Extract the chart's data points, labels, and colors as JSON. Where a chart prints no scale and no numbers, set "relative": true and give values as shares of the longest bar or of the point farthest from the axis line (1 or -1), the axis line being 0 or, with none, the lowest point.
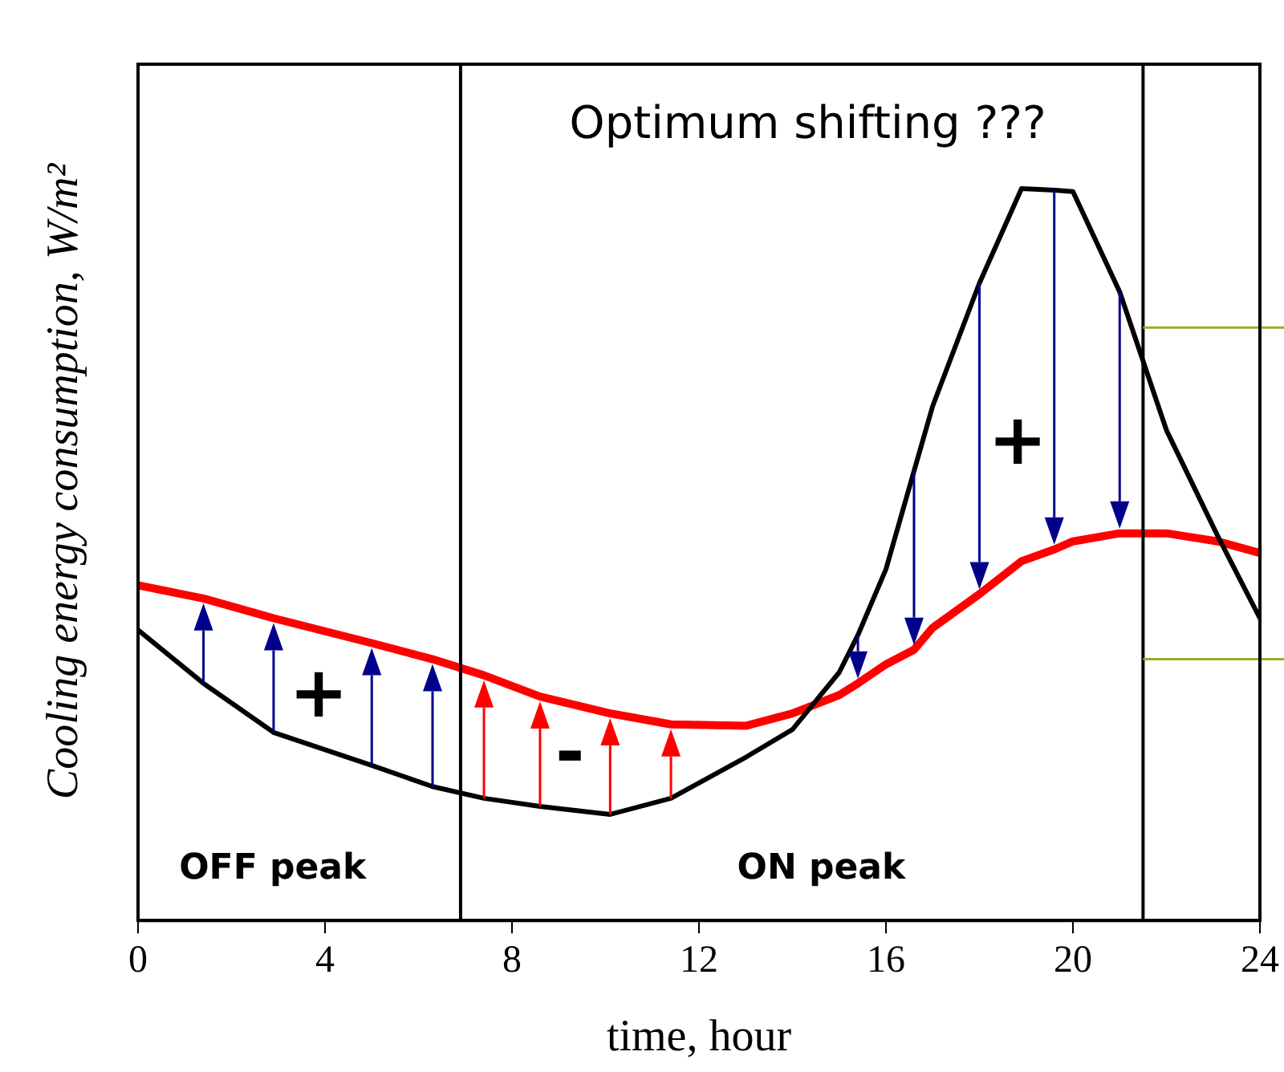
{
  "chart_data": {
    "type": "line",
    "relative": true,
    "xlabel": "time, hour",
    "ylabel": "Cooling energy consumption, W/m²",
    "x": [
      0,
      1.4,
      2.9,
      5.0,
      6.3,
      7.4,
      8.6,
      10.1,
      11.4,
      13.0,
      14.0,
      15.0,
      15.4,
      16.0,
      16.6,
      17.0,
      18.0,
      18.9,
      19.6,
      20.0,
      21.0,
      22.0,
      23.1,
      24
    ],
    "xlim": [
      0,
      24
    ],
    "xticks": [
      0,
      4,
      8,
      12,
      16,
      20,
      24
    ],
    "series": [
      {
        "color": "#000000",
        "values": [
          0.397,
          0.324,
          0.257,
          0.212,
          0.183,
          0.167,
          0.156,
          0.145,
          0.167,
          0.223,
          0.261,
          0.339,
          0.39,
          0.48,
          0.614,
          0.703,
          0.871,
          1,
          0.998,
          0.996,
          0.859,
          0.67,
          0.525,
          0.413
        ]
      },
      {
        "color": "#ff0000",
        "values": [
          0.458,
          0.44,
          0.413,
          0.379,
          0.357,
          0.335,
          0.306,
          0.283,
          0.268,
          0.266,
          0.283,
          0.308,
          0.324,
          0.35,
          0.37,
          0.4,
          0.446,
          0.491,
          0.507,
          0.518,
          0.529,
          0.529,
          0.518,
          0.502
        ]
      }
    ],
    "ref_lines": [
      {
        "axis": "x",
        "value": 6.9,
        "color": "#000000"
      },
      {
        "axis": "x",
        "value": 21.5,
        "color": "#000000"
      },
      {
        "axis": "y",
        "value": 0.81,
        "color": "#9aab2d"
      },
      {
        "axis": "y",
        "value": 0.357,
        "color": "#9aab2d"
      }
    ],
    "annotations": [
      "Optimum shifting ???",
      "OFF peak",
      "ON peak",
      "+",
      "-",
      "+"
    ],
    "grid": false,
    "legend": false,
    "marker": "none",
    "line_style": "solid"
  }
}
